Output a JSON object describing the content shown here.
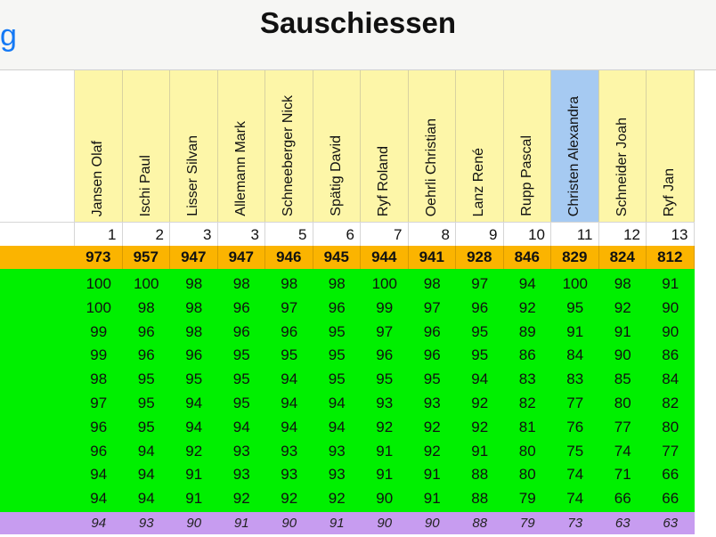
{
  "app": {
    "title": "Sauschiessen",
    "back_label": "g"
  },
  "players": [
    {
      "name": "Jansen Olaf",
      "rank": "1",
      "total": "973",
      "scores": [
        "100",
        "100",
        "99",
        "99",
        "98",
        "97",
        "96",
        "96",
        "94",
        "94"
      ],
      "avg": "94",
      "selected": false
    },
    {
      "name": "Ischi Paul",
      "rank": "2",
      "total": "957",
      "scores": [
        "100",
        "98",
        "96",
        "96",
        "95",
        "95",
        "95",
        "94",
        "94",
        "94"
      ],
      "avg": "93",
      "selected": false
    },
    {
      "name": "Lisser Silvan",
      "rank": "3",
      "total": "947",
      "scores": [
        "98",
        "98",
        "98",
        "96",
        "95",
        "94",
        "94",
        "92",
        "91",
        "91"
      ],
      "avg": "90",
      "selected": false
    },
    {
      "name": "Allemann Mark",
      "rank": "3",
      "total": "947",
      "scores": [
        "98",
        "96",
        "96",
        "95",
        "95",
        "95",
        "94",
        "93",
        "93",
        "92"
      ],
      "avg": "91",
      "selected": false
    },
    {
      "name": "Schneeberger Nick",
      "rank": "5",
      "total": "946",
      "scores": [
        "98",
        "97",
        "96",
        "95",
        "94",
        "94",
        "94",
        "93",
        "93",
        "92"
      ],
      "avg": "90",
      "selected": false
    },
    {
      "name": "Spätig David",
      "rank": "6",
      "total": "945",
      "scores": [
        "98",
        "96",
        "95",
        "95",
        "95",
        "94",
        "94",
        "93",
        "93",
        "92"
      ],
      "avg": "91",
      "selected": false
    },
    {
      "name": "Ryf Roland",
      "rank": "7",
      "total": "944",
      "scores": [
        "100",
        "99",
        "97",
        "96",
        "95",
        "93",
        "92",
        "91",
        "91",
        "90"
      ],
      "avg": "90",
      "selected": false
    },
    {
      "name": "Oehrli Christian",
      "rank": "8",
      "total": "941",
      "scores": [
        "98",
        "97",
        "96",
        "96",
        "95",
        "93",
        "92",
        "92",
        "91",
        "91"
      ],
      "avg": "90",
      "selected": false
    },
    {
      "name": "Lanz René",
      "rank": "9",
      "total": "928",
      "scores": [
        "97",
        "96",
        "95",
        "95",
        "94",
        "92",
        "92",
        "91",
        "88",
        "88"
      ],
      "avg": "88",
      "selected": false
    },
    {
      "name": "Rupp Pascal",
      "rank": "10",
      "total": "846",
      "scores": [
        "94",
        "92",
        "89",
        "86",
        "83",
        "82",
        "81",
        "80",
        "80",
        "79"
      ],
      "avg": "79",
      "selected": false
    },
    {
      "name": "Christen Alexandra",
      "rank": "11",
      "total": "829",
      "scores": [
        "100",
        "95",
        "91",
        "84",
        "83",
        "77",
        "76",
        "75",
        "74",
        "74"
      ],
      "avg": "73",
      "selected": true
    },
    {
      "name": "Schneider Joah",
      "rank": "12",
      "total": "824",
      "scores": [
        "98",
        "92",
        "91",
        "90",
        "85",
        "80",
        "77",
        "74",
        "71",
        "66"
      ],
      "avg": "63",
      "selected": false
    },
    {
      "name": "Ryf Jan",
      "rank": "13",
      "total": "812",
      "scores": [
        "91",
        "90",
        "90",
        "86",
        "84",
        "82",
        "80",
        "77",
        "66",
        "66"
      ],
      "avg": "63",
      "selected": false
    }
  ],
  "colors": {
    "header_bg": "#fdf6a8",
    "selected_header_bg": "#a6caf2",
    "totals_bg": "#fbb400",
    "scores_bg": "#00f000",
    "average_bg": "#c79cf0",
    "back_link": "#1479f5"
  }
}
